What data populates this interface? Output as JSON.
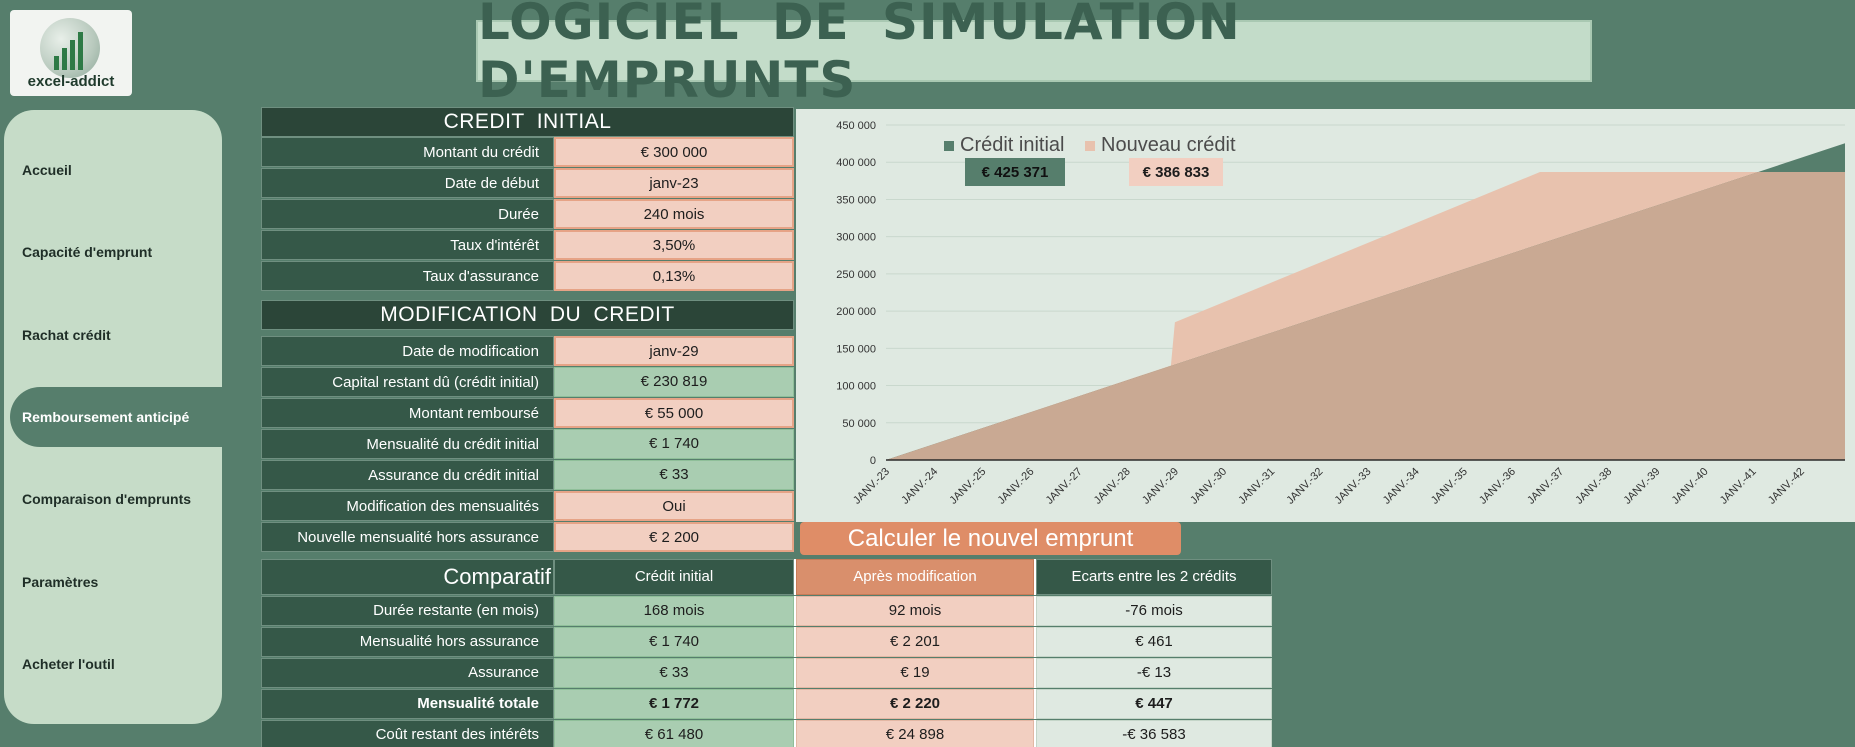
{
  "logo": {
    "text": "excel-addict"
  },
  "title": "LOGICIEL  DE  SIMULATION D'EMPRUNTS",
  "sidebar": {
    "items": [
      {
        "label": "Accueil"
      },
      {
        "label": "Capacité d'emprunt"
      },
      {
        "label": "Rachat crédit"
      },
      {
        "label": "Remboursement anticipé",
        "active": true
      },
      {
        "label": "Comparaison d'emprunts"
      },
      {
        "label": "Paramètres"
      },
      {
        "label": "Acheter l'outil"
      }
    ]
  },
  "credit_initial": {
    "header": "CREDIT  INITIAL",
    "rows": [
      {
        "label": "Montant du crédit",
        "value": "€ 300 000"
      },
      {
        "label": "Date de début",
        "value": "janv-23"
      },
      {
        "label": "Durée",
        "value": "240 mois"
      },
      {
        "label": "Taux d'intérêt",
        "value": "3,50%"
      },
      {
        "label": "Taux d'assurance",
        "value": "0,13%"
      }
    ]
  },
  "modification": {
    "header": "MODIFICATION  DU  CREDIT",
    "rows": [
      {
        "label": "Date de modification",
        "value": "janv-29"
      },
      {
        "label": "Capital restant dû (crédit initial)",
        "value": "€ 230 819"
      },
      {
        "label": "Montant remboursé",
        "value": "€ 55 000"
      },
      {
        "label": "Mensualité du crédit initial",
        "value": "€ 1 740"
      },
      {
        "label": "Assurance du crédit initial",
        "value": "€ 33"
      },
      {
        "label": "Modification des mensualités",
        "value": "Oui"
      },
      {
        "label": "Nouvelle mensualité hors assurance",
        "value": "€ 2 200"
      }
    ]
  },
  "button": {
    "label": "Calculer le nouvel emprunt"
  },
  "comparatif": {
    "headers": [
      "Comparatif",
      "Crédit initial",
      "Après modification",
      "Ecarts entre les 2 crédits"
    ],
    "rows": [
      {
        "label": "Durée restante (en mois)",
        "initial": "168 mois",
        "apres": "92 mois",
        "ecart": "-76 mois"
      },
      {
        "label": "Mensualité hors assurance",
        "initial": "€ 1 740",
        "apres": "€ 2 201",
        "ecart": "€ 461"
      },
      {
        "label": "Assurance",
        "initial": "€ 33",
        "apres": "€ 19",
        "ecart": "-€ 13"
      },
      {
        "label": "Mensualité totale",
        "initial": "€ 1 772",
        "apres": "€ 2 220",
        "ecart": "€ 447"
      },
      {
        "label": "Coût restant des intérêts",
        "initial": "€ 61 480",
        "apres": "€ 24 898",
        "ecart": "-€ 36 583"
      }
    ]
  },
  "colors": {
    "initial": "#567e6c",
    "nouveau": "#e8c2ae",
    "overlap": "#c9a993"
  },
  "chart_data": {
    "type": "area",
    "categories": [
      "JANV.-23",
      "JANV.-24",
      "JANV.-25",
      "JANV.-26",
      "JANV.-27",
      "JANV.-28",
      "JANV.-29",
      "JANV.-30",
      "JANV.-31",
      "JANV.-32",
      "JANV.-33",
      "JANV.-34",
      "JANV.-35",
      "JANV.-36",
      "JANV.-37",
      "JANV.-38",
      "JANV.-39",
      "JANV.-40",
      "JANV.-41",
      "JANV.-42"
    ],
    "y_ticks": [
      "0",
      "50 000",
      "100 000",
      "150 000",
      "200 000",
      "250 000",
      "300 000",
      "350 000",
      "400 000",
      "450 000"
    ],
    "ylim": [
      0,
      450000
    ],
    "series": [
      {
        "name": "Crédit initial",
        "total_label": "€ 425 371",
        "x": [
          "JANV.-23",
          "DÉC.-42"
        ],
        "values": [
          0,
          425371
        ]
      },
      {
        "name": "Nouveau crédit",
        "total_label": "€ 386 833",
        "x": [
          "JANV.-23",
          "DÉC.-28",
          "JANV.-29",
          "AOÛT-36",
          "DÉC.-42"
        ],
        "values": [
          0,
          127000,
          185000,
          386833,
          386833
        ]
      }
    ],
    "grid": true,
    "legend": "top-left"
  }
}
